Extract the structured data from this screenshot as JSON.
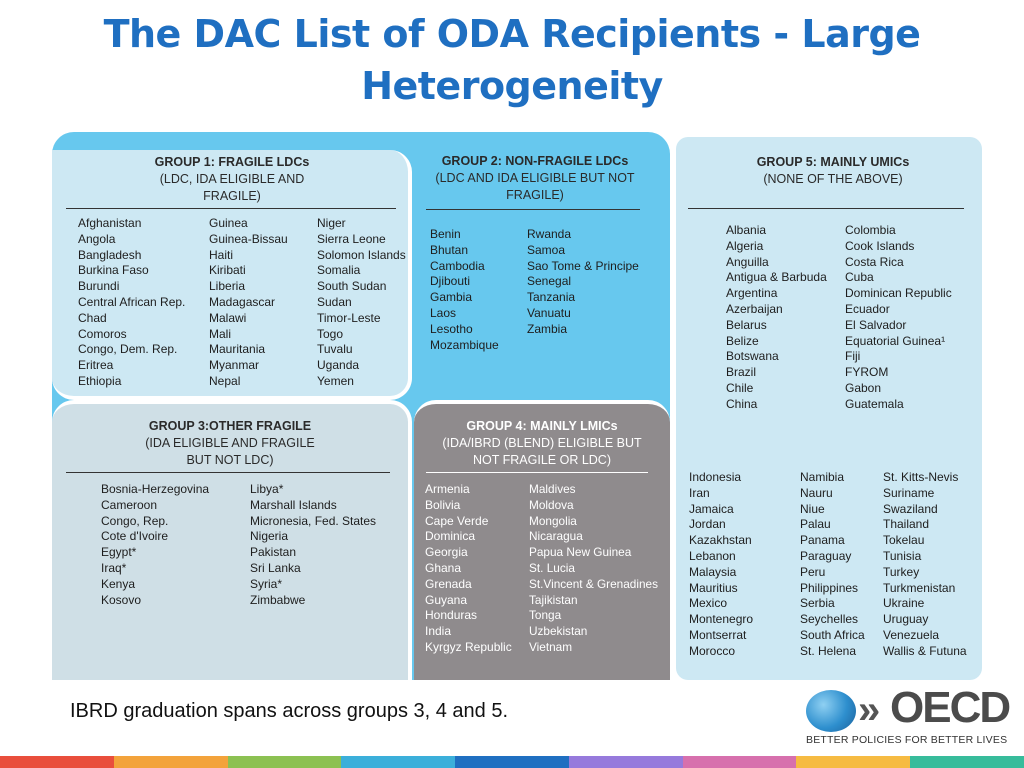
{
  "title_line1": "The DAC List of ODA Recipients - Large",
  "title_line2": "Heterogeneity",
  "caption": "IBRD graduation spans across groups 3, 4 and 5.",
  "logo": {
    "name": "OECD",
    "tagline": "BETTER POLICIES FOR BETTER LIVES",
    "icon": "oecd-globe-icon"
  },
  "colors": {
    "title": "#1f6fc1",
    "blue": "#67c8ee",
    "light_blue": "#cde8f3",
    "grey": "#8f8b8d"
  },
  "group1": {
    "heading": "GROUP 1: FRAGILE LDCs",
    "sub1": "(LDC, IDA ELIGIBLE AND",
    "sub2": "FRAGILE)",
    "col1": [
      "Afghanistan",
      "Angola",
      "Bangladesh",
      "Burkina Faso",
      "Burundi",
      "Central African Rep.",
      "Chad",
      "Comoros",
      "Congo, Dem. Rep.",
      "Eritrea",
      "Ethiopia"
    ],
    "col2": [
      "Guinea",
      "Guinea-Bissau",
      "Haiti",
      "Kiribati",
      "Liberia",
      "Madagascar",
      "Malawi",
      "Mali",
      "Mauritania",
      "Myanmar",
      "Nepal"
    ],
    "col3": [
      "Niger",
      "Sierra Leone",
      "Solomon Islands",
      "Somalia",
      "South Sudan",
      "Sudan",
      "Timor-Leste",
      "Togo",
      "Tuvalu",
      "Uganda",
      "Yemen"
    ]
  },
  "group2": {
    "heading": "GROUP 2: NON-FRAGILE LDCs",
    "sub1": "(LDC AND IDA ELIGIBLE BUT NOT",
    "sub2": "FRAGILE)",
    "col1": [
      "Benin",
      "Bhutan",
      "Cambodia",
      "Djibouti",
      "Gambia",
      "Laos",
      "Lesotho",
      "Mozambique"
    ],
    "col2": [
      "Rwanda",
      "Samoa",
      "Sao Tome & Principe",
      "Senegal",
      "Tanzania",
      "Vanuatu",
      "Zambia"
    ]
  },
  "group3": {
    "heading": "GROUP 3:OTHER FRAGILE",
    "sub1": "(IDA ELIGIBLE AND FRAGILE",
    "sub2": "BUT NOT LDC)",
    "col1": [
      "Bosnia-Herzegovina",
      "Cameroon",
      "Congo, Rep.",
      "Cote d'Ivoire",
      "Egypt*",
      "Iraq*",
      "Kenya",
      "Kosovo"
    ],
    "col2": [
      "Libya*",
      "Marshall Islands",
      "Micronesia, Fed. States",
      "Nigeria",
      "Pakistan",
      "Sri Lanka",
      "Syria*",
      "Zimbabwe"
    ]
  },
  "group4": {
    "heading": "GROUP 4: MAINLY LMICs",
    "sub1": "(IDA/IBRD (BLEND) ELIGIBLE BUT",
    "sub2": "NOT FRAGILE OR LDC)",
    "col1": [
      "Armenia",
      "Bolivia",
      "Cape Verde",
      "Dominica",
      "Georgia",
      "Ghana",
      "Grenada",
      "Guyana",
      "Honduras",
      "India",
      "Kyrgyz Republic"
    ],
    "col2": [
      "Maldives",
      "Moldova",
      "Mongolia",
      "Nicaragua",
      "Papua New Guinea",
      "St. Lucia",
      "St.Vincent & Grenadines",
      "Tajikistan",
      "Tonga",
      "Uzbekistan",
      "Vietnam"
    ]
  },
  "group5": {
    "heading": "GROUP 5: MAINLY UMICs",
    "sub1": "(NONE OF THE ABOVE)",
    "top_col1": [
      "Albania",
      "Algeria",
      "Anguilla",
      "Antigua & Barbuda",
      "Argentina",
      "Azerbaijan",
      "Belarus",
      "Belize",
      "Botswana",
      "Brazil",
      "Chile",
      "China"
    ],
    "top_col2": [
      "Colombia",
      "Cook Islands",
      "Costa Rica",
      "Cuba",
      "Dominican Republic",
      "Ecuador",
      "El Salvador",
      "Equatorial Guinea¹",
      "Fiji",
      "FYROM",
      "Gabon",
      "Guatemala"
    ],
    "bot_col1": [
      "Indonesia",
      "Iran",
      "Jamaica",
      "Jordan",
      "Kazakhstan",
      "Lebanon",
      "Malaysia",
      "Mauritius",
      "Mexico",
      "Montenegro",
      "Montserrat",
      "Morocco"
    ],
    "bot_col2": [
      "Namibia",
      "Nauru",
      "Niue",
      "Palau",
      "Panama",
      "Paraguay",
      "Peru",
      "Philippines",
      "Serbia",
      "Seychelles",
      "South Africa",
      "St. Helena"
    ],
    "bot_col3": [
      "St. Kitts-Nevis",
      "Suriname",
      "Swaziland",
      "Thailand",
      "Tokelau",
      "Tunisia",
      "Turkey",
      "Turkmenistan",
      "Ukraine",
      "Uruguay",
      "Venezuela",
      "Wallis & Futuna"
    ]
  }
}
